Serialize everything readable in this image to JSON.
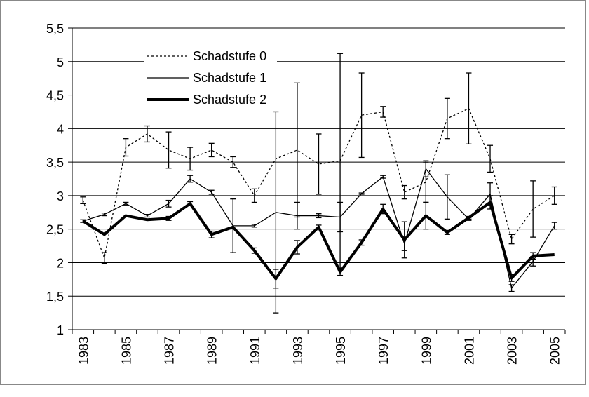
{
  "chart_data": {
    "type": "line",
    "categories": [
      "1983",
      null,
      "1985",
      null,
      "1987",
      null,
      "1989",
      null,
      "1991",
      null,
      "1993",
      null,
      "1995",
      null,
      "1997",
      null,
      "1999",
      null,
      "2001",
      null,
      "2003",
      null,
      "2005"
    ],
    "series": [
      {
        "name": "Schadstufe 0",
        "color": "#000000",
        "style": "dotted",
        "width": 1.3,
        "values": [
          2.93,
          2.07,
          3.72,
          3.92,
          3.68,
          3.55,
          3.68,
          3.5,
          3.0,
          3.55,
          3.68,
          3.47,
          3.52,
          4.2,
          4.25,
          3.05,
          3.2,
          4.15,
          4.3,
          3.55,
          2.35,
          2.8,
          3.0
        ],
        "errors": [
          0.05,
          0.08,
          0.13,
          0.12,
          0.27,
          0.17,
          0.1,
          0.08,
          0.1,
          0.0,
          1.0,
          0.45,
          1.6,
          0.63,
          0.08,
          0.1,
          0.3,
          0.3,
          0.53,
          0.2,
          0.07,
          0.42,
          0.13
        ]
      },
      {
        "name": "Schadstufe 1",
        "color": "#000000",
        "style": "solid",
        "width": 1.3,
        "values": [
          2.62,
          2.72,
          2.88,
          2.7,
          2.88,
          3.25,
          3.05,
          2.55,
          2.55,
          2.75,
          2.7,
          2.7,
          2.68,
          3.03,
          3.28,
          2.28,
          3.4,
          2.98,
          2.65,
          3.02,
          1.62,
          2.02,
          2.55
        ],
        "errors": [
          0.02,
          0.02,
          0.02,
          0.02,
          0.05,
          0.05,
          0.03,
          0.4,
          0.02,
          1.5,
          0.2,
          0.03,
          0.22,
          0.01,
          0.02,
          0.1,
          0.12,
          0.33,
          0.02,
          0.17,
          0.05,
          0.07,
          0.05
        ]
      },
      {
        "name": "Schadstufe 2",
        "color": "#000000",
        "style": "solid",
        "width": 4,
        "values": [
          2.62,
          2.42,
          2.7,
          2.64,
          2.66,
          2.88,
          2.42,
          2.53,
          2.18,
          1.76,
          2.23,
          2.53,
          1.86,
          2.3,
          2.8,
          2.34,
          2.7,
          2.45,
          2.67,
          2.9,
          1.77,
          2.1,
          2.12
        ],
        "errors": [
          0,
          0,
          0,
          0,
          0.03,
          0.03,
          0.05,
          0,
          0.04,
          0.14,
          0.1,
          0.03,
          0.05,
          0.04,
          0.07,
          0.27,
          0.2,
          0.03,
          0.02,
          0.1,
          0.05,
          0.05,
          0
        ]
      }
    ],
    "ylim": [
      1,
      5.5
    ],
    "yticks": [
      1,
      {
        "value": 1.5,
        "label": "1,5"
      },
      2,
      {
        "value": 2.5,
        "label": "2,5"
      },
      3,
      {
        "value": 3.5,
        "label": "3,5"
      },
      4,
      {
        "value": 4.5,
        "label": "4,5"
      },
      5,
      {
        "value": 5.5,
        "label": "5,5"
      }
    ],
    "grid": true,
    "legend": "top-left"
  }
}
